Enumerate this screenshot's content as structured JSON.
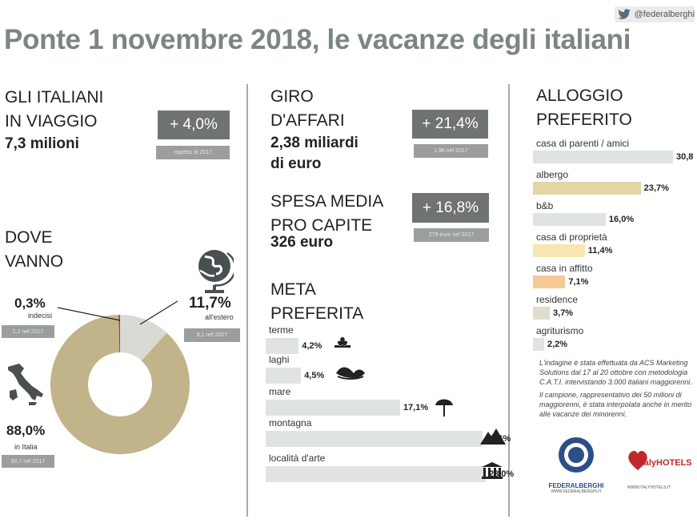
{
  "twitter": {
    "handle": "@federalberghi"
  },
  "title": "Ponte 1 novembre 2018, le vacanze degli italiani",
  "col1": {
    "travel_heading": [
      "GLI ITALIANI",
      "IN VIAGGIO"
    ],
    "travel_value": "7,3 milioni",
    "travel_badge": "+ 4,0%",
    "travel_badge_sub": "rispetto al 2017",
    "where_heading": [
      "DOVE",
      "VANNO"
    ],
    "undecided": {
      "pct": "0,3%",
      "label": "indecisi",
      "prev": "1,2 nel 2017"
    },
    "abroad": {
      "pct": "11,7%",
      "label": "all'estero",
      "prev": "8,1 nel 2017"
    },
    "italy": {
      "pct": "88,0%",
      "label": "in Italia",
      "prev": "90,7 nel 2017"
    }
  },
  "col2": {
    "turnover_heading": [
      "GIRO",
      "D'AFFARI"
    ],
    "turnover_value": [
      "2,38 miliardi",
      "di euro"
    ],
    "turnover_badge": "+ 21,4%",
    "turnover_badge_sub": "1,96 nel 2017",
    "spend_heading": [
      "SPESA MEDIA",
      "PRO CAPITE"
    ],
    "spend_value": "326 euro",
    "spend_badge": "+ 16,8%",
    "spend_badge_sub": "279 euro nel 2017",
    "dest_heading": [
      "META",
      "PREFERITA"
    ]
  },
  "col3": {
    "heading": [
      "ALLOGGIO",
      "PREFERITO"
    ],
    "note1": "L'indagine è stata effettuata da ACS Marketing Solutions dal 17 al 20 ottobre con metodologia C.A.T.I. intervistando 3.000 italiani maggiorenni.",
    "note2": "Il campione, rappresentativo dei 50 milioni di maggiorenni, è stata interpolata anche in merito alle vacanze dei minorenni.",
    "logo1": "FEDERALBERGHI",
    "logo1_url": "WWW.FEDERALBERGHI.IT",
    "logo2": "italyHOTELS",
    "logo2_url": "WWW.ITALYHOTELS.IT"
  },
  "colors": {
    "donut_italy": "#c2b48a",
    "donut_abroad": "#d8dad4",
    "donut_undecided": "#b23a2a",
    "bar_grey": "#dfe3e3",
    "bar_albergo": "#e3d5a4",
    "bar_proprieta": "#f8e6b2",
    "bar_affitto": "#f6c896",
    "bar_gold_small": "#e0dcd0"
  },
  "chart_data": [
    {
      "type": "pie",
      "title": "DOVE VANNO",
      "categories": [
        "in Italia",
        "all'estero",
        "indecisi"
      ],
      "values": [
        88.0,
        11.7,
        0.3
      ]
    },
    {
      "type": "bar",
      "title": "META PREFERITA",
      "categories": [
        "terme",
        "laghi",
        "mare",
        "montagna",
        "località d'arte"
      ],
      "values": [
        4.2,
        4.5,
        17.1,
        27.6,
        28.0
      ],
      "labels": [
        "4,2%",
        "4,5%",
        "17,1%",
        "27,6%",
        "28,0%"
      ],
      "icons": [
        "spa-icon",
        "lake-icon",
        "beach-umbrella-icon",
        "mountain-icon",
        "temple-icon"
      ]
    },
    {
      "type": "bar",
      "title": "ALLOGGIO PREFERITO",
      "categories": [
        "casa di parenti / amici",
        "albergo",
        "b&b",
        "casa di proprietà",
        "casa in affitto",
        "residence",
        "agriturismo"
      ],
      "values": [
        30.8,
        23.7,
        16.0,
        11.4,
        7.1,
        3.7,
        2.2
      ],
      "labels": [
        "30,8",
        "23,7%",
        "16,0%",
        "11,4%",
        "7,1%",
        "3,7%",
        "2,2%"
      ]
    }
  ]
}
